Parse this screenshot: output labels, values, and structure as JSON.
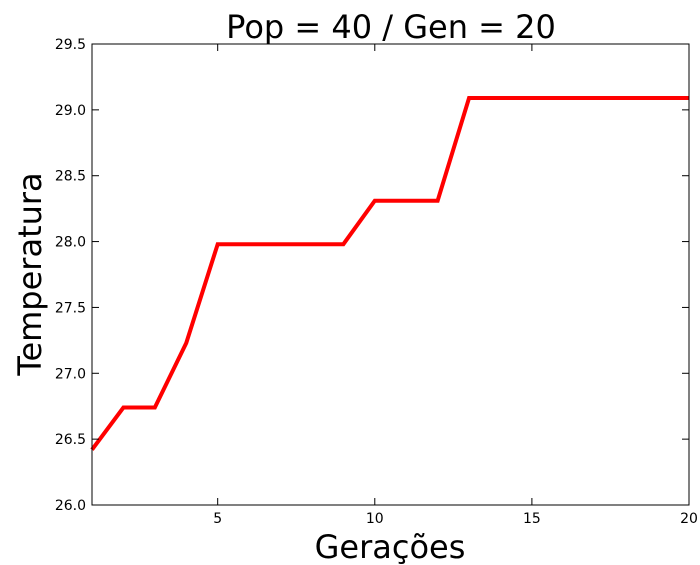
{
  "chart_data": {
    "type": "line",
    "title": "Pop = 40 / Gen = 20",
    "xlabel": "Gerações",
    "ylabel": "Temperatura",
    "xlim": [
      1,
      20
    ],
    "ylim": [
      26.0,
      29.5
    ],
    "xticks": [
      5,
      10,
      15,
      20
    ],
    "yticks": [
      26.0,
      26.5,
      27.0,
      27.5,
      28.0,
      28.5,
      29.0,
      29.5
    ],
    "grid": false,
    "series": [
      {
        "color": "#ff0000",
        "x": [
          1,
          2,
          3,
          4,
          5,
          6,
          7,
          8,
          9,
          10,
          11,
          12,
          13,
          14,
          15,
          16,
          17,
          18,
          19,
          20
        ],
        "y": [
          26.42,
          26.74,
          26.74,
          27.23,
          27.98,
          27.98,
          27.98,
          27.98,
          27.98,
          28.31,
          28.31,
          28.31,
          29.09,
          29.09,
          29.09,
          29.09,
          29.09,
          29.09,
          29.09,
          29.09
        ]
      }
    ]
  }
}
